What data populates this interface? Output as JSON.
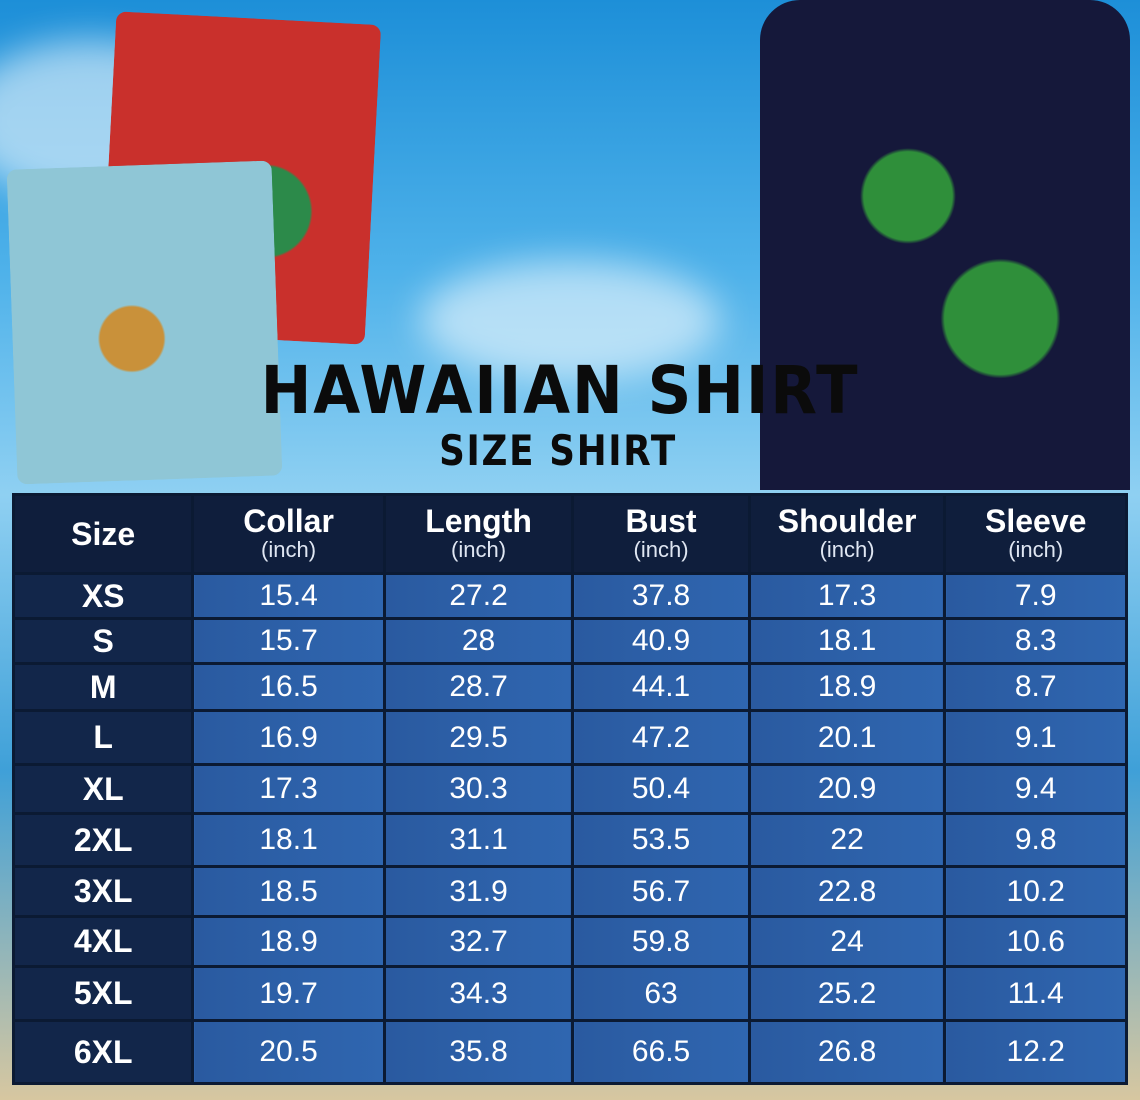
{
  "title": "HAWAIIAN SHIRT",
  "subtitle": "SIZE SHIRT",
  "colors": {
    "header_bg": "#0f1e3c",
    "cell_bg": "#2f66b0",
    "size_col_bg": "#12264a"
  },
  "table": {
    "headers": [
      {
        "label": "Size",
        "unit": ""
      },
      {
        "label": "Collar",
        "unit": "(inch)"
      },
      {
        "label": "Length",
        "unit": "(inch)"
      },
      {
        "label": "Bust",
        "unit": "(inch)"
      },
      {
        "label": "Shoulder",
        "unit": "(inch)"
      },
      {
        "label": "Sleeve",
        "unit": "(inch)"
      }
    ],
    "rows": [
      [
        "XS",
        "15.4",
        "27.2",
        "37.8",
        "17.3",
        "7.9"
      ],
      [
        "S",
        "15.7",
        "28",
        "40.9",
        "18.1",
        "8.3"
      ],
      [
        "M",
        "16.5",
        "28.7",
        "44.1",
        "18.9",
        "8.7"
      ],
      [
        "L",
        "16.9",
        "29.5",
        "47.2",
        "20.1",
        "9.1"
      ],
      [
        "XL",
        "17.3",
        "30.3",
        "50.4",
        "20.9",
        "9.4"
      ],
      [
        "2XL",
        "18.1",
        "31.1",
        "53.5",
        "22",
        "9.8"
      ],
      [
        "3XL",
        "18.5",
        "31.9",
        "56.7",
        "22.8",
        "10.2"
      ],
      [
        "4XL",
        "18.9",
        "32.7",
        "59.8",
        "24",
        "10.6"
      ],
      [
        "5XL",
        "19.7",
        "34.3",
        "63",
        "25.2",
        "11.4"
      ],
      [
        "6XL",
        "20.5",
        "35.8",
        "66.5",
        "26.8",
        "12.2"
      ]
    ]
  }
}
